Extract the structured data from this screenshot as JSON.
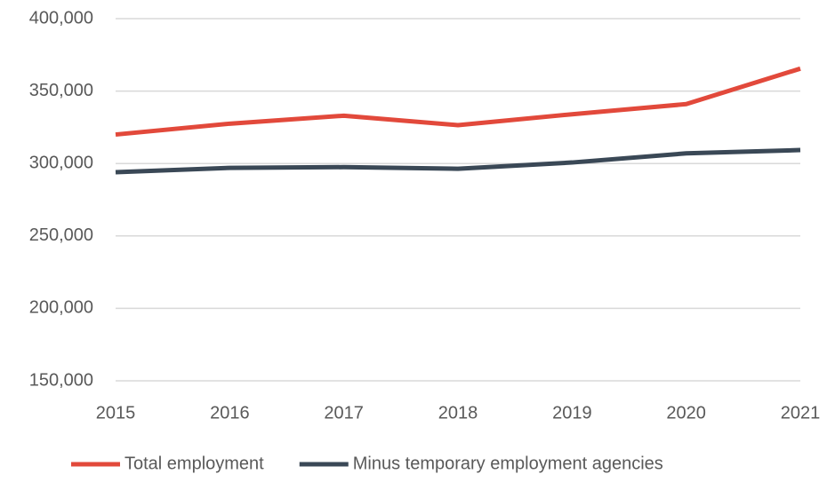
{
  "chart_data": {
    "type": "line",
    "categories": [
      "2015",
      "2016",
      "2017",
      "2018",
      "2019",
      "2020",
      "2021"
    ],
    "series": [
      {
        "name": "Total employment",
        "color": "#e2493b",
        "values": [
          320000,
          327500,
          333000,
          326500,
          334000,
          341000,
          365500
        ]
      },
      {
        "name": "Minus temporary employment agencies",
        "color": "#3a4856",
        "values": [
          294000,
          297000,
          297500,
          296400,
          300700,
          307000,
          309300
        ]
      }
    ],
    "ylim": [
      150000,
      400000
    ],
    "yticks": [
      {
        "value": 150000,
        "label": "150,000"
      },
      {
        "value": 200000,
        "label": "200,000"
      },
      {
        "value": 250000,
        "label": "250,000"
      },
      {
        "value": 300000,
        "label": "300,000"
      },
      {
        "value": 350000,
        "label": "350,000"
      },
      {
        "value": 400000,
        "label": "400,000"
      }
    ],
    "grid": true,
    "legend": "bottom"
  }
}
